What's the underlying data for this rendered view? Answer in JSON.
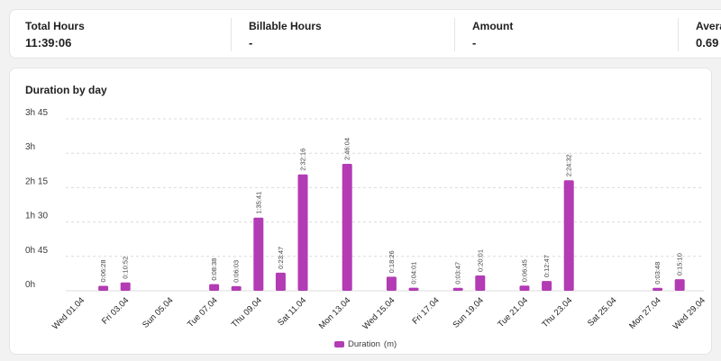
{
  "stats": [
    {
      "label": "Total Hours",
      "value": "11:39:06"
    },
    {
      "label": "Billable Hours",
      "value": "-"
    },
    {
      "label": "Amount",
      "value": "-"
    },
    {
      "label": "Averag",
      "value": "0.69"
    }
  ],
  "chart_title": "Duration by day",
  "colors": {
    "bar": "#b33bb4",
    "grid": "#dcdcdc"
  },
  "legend": {
    "label": "Duration",
    "unit": "(m)"
  },
  "chart_data": {
    "type": "bar",
    "title": "Duration by day",
    "ylim": [
      0,
      225
    ],
    "yticks": [
      {
        "value": 0,
        "label": "0h"
      },
      {
        "value": 45,
        "label": "0h 45"
      },
      {
        "value": 90,
        "label": "1h 30"
      },
      {
        "value": 135,
        "label": "2h 15"
      },
      {
        "value": 180,
        "label": "3h"
      },
      {
        "value": 225,
        "label": "3h 45"
      }
    ],
    "grid": true,
    "legend_position": "bottom",
    "series": [
      {
        "name": "Duration (m)"
      }
    ],
    "days": [
      "01.04",
      "02.04",
      "03.04",
      "04.04",
      "05.04",
      "06.04",
      "07.04",
      "08.04",
      "09.04",
      "10.04",
      "11.04",
      "12.04",
      "13.04",
      "14.04",
      "15.04",
      "16.04",
      "17.04",
      "18.04",
      "19.04",
      "20.04",
      "21.04",
      "22.04",
      "23.04",
      "24.04",
      "25.04",
      "26.04",
      "27.04",
      "28.04",
      "29.04"
    ],
    "x_labels": [
      {
        "day": "01.04",
        "label": "Wed 01.04"
      },
      {
        "day": "03.04",
        "label": "Fri 03.04"
      },
      {
        "day": "05.04",
        "label": "Sun 05.04"
      },
      {
        "day": "07.04",
        "label": "Tue 07.04"
      },
      {
        "day": "09.04",
        "label": "Thu 09.04"
      },
      {
        "day": "11.04",
        "label": "Sat 11.04"
      },
      {
        "day": "13.04",
        "label": "Mon 13.04"
      },
      {
        "day": "15.04",
        "label": "Wed 15.04"
      },
      {
        "day": "17.04",
        "label": "Fri 17.04"
      },
      {
        "day": "19.04",
        "label": "Sun 19.04"
      },
      {
        "day": "21.04",
        "label": "Tue 21.04"
      },
      {
        "day": "23.04",
        "label": "Thu 23.04"
      },
      {
        "day": "25.04",
        "label": "Sat 25.04"
      },
      {
        "day": "27.04",
        "label": "Mon 27.04"
      },
      {
        "day": "29.04",
        "label": "Wed 29.04"
      }
    ],
    "bars": [
      {
        "day": "02.04",
        "minutes": 6.47,
        "label": "0:06:28"
      },
      {
        "day": "03.04",
        "minutes": 10.87,
        "label": "0:10:52"
      },
      {
        "day": "07.04",
        "minutes": 8.63,
        "label": "0:08:38"
      },
      {
        "day": "08.04",
        "minutes": 6.05,
        "label": "0:06:03"
      },
      {
        "day": "09.04",
        "minutes": 95.68,
        "label": "1:35:41"
      },
      {
        "day": "10.04",
        "minutes": 23.78,
        "label": "0:23:47"
      },
      {
        "day": "11.04",
        "minutes": 152.27,
        "label": "2:32:16"
      },
      {
        "day": "13.04",
        "minutes": 166.07,
        "label": "2:46:04"
      },
      {
        "day": "15.04",
        "minutes": 18.43,
        "label": "0:18:26"
      },
      {
        "day": "16.04",
        "minutes": 4.02,
        "label": "0:04:01"
      },
      {
        "day": "18.04",
        "minutes": 3.78,
        "label": "0:03:47"
      },
      {
        "day": "19.04",
        "minutes": 20.02,
        "label": "0:20:01"
      },
      {
        "day": "21.04",
        "minutes": 6.75,
        "label": "0:06:45"
      },
      {
        "day": "22.04",
        "minutes": 12.78,
        "label": "0:12:47"
      },
      {
        "day": "23.04",
        "minutes": 144.53,
        "label": "2:24:32"
      },
      {
        "day": "27.04",
        "minutes": 3.8,
        "label": "0:03:48"
      },
      {
        "day": "28.04",
        "minutes": 15.17,
        "label": "0:15:10"
      }
    ]
  }
}
